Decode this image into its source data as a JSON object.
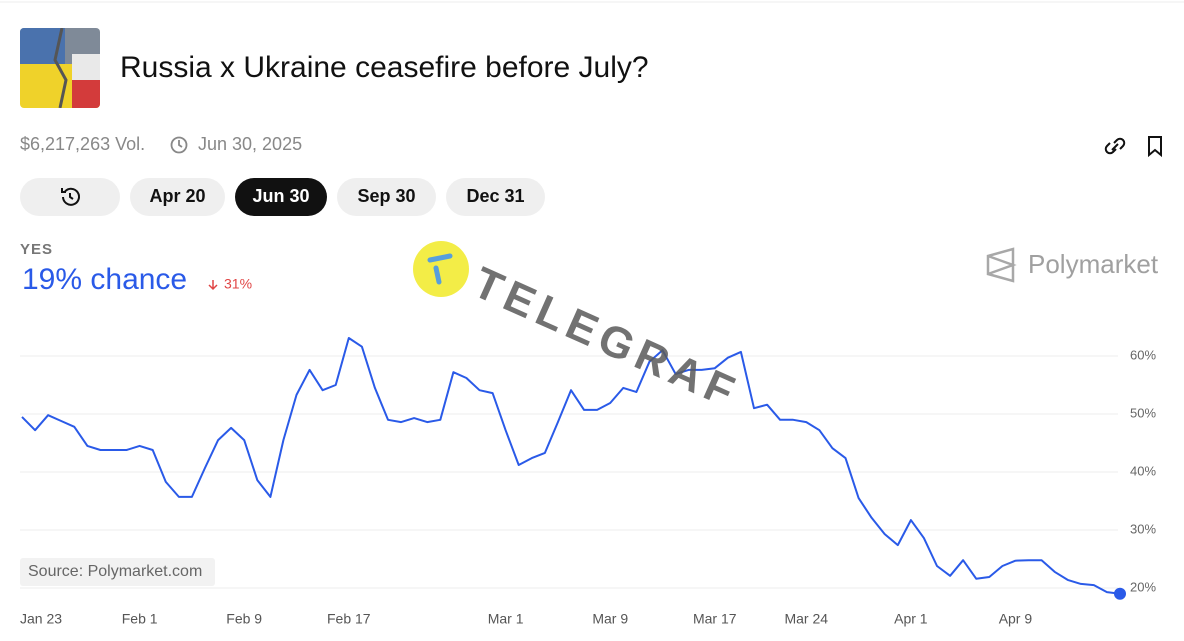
{
  "header": {
    "title": "Russia x Ukraine ceasefire before July?",
    "volume": "$6,217,263 Vol.",
    "end_date": "Jun 30, 2025"
  },
  "tabs": [
    "Apr 20",
    "Jun 30",
    "Sep 30",
    "Dec 31"
  ],
  "outcome": {
    "label": "YES",
    "chance": "19% chance",
    "change": "31%"
  },
  "brand": "Polymarket",
  "watermark": "TELEGRAF",
  "source": "Source: Polymarket.com",
  "chart_data": {
    "type": "line",
    "categories": [
      "Jan 23",
      null,
      null,
      null,
      null,
      null,
      null,
      null,
      null,
      "Feb 1",
      null,
      null,
      null,
      null,
      null,
      null,
      null,
      "Feb 9",
      null,
      null,
      null,
      null,
      null,
      null,
      null,
      "Feb 17",
      null,
      null,
      null,
      null,
      null,
      null,
      null,
      null,
      null,
      null,
      null,
      "Mar 1",
      null,
      null,
      null,
      null,
      null,
      null,
      null,
      "Mar 9",
      null,
      null,
      null,
      null,
      null,
      null,
      null,
      "Mar 17",
      null,
      null,
      null,
      null,
      null,
      null,
      "Mar 24",
      null,
      null,
      null,
      null,
      null,
      null,
      null,
      "Apr 1",
      null,
      null,
      null,
      null,
      null,
      null,
      null,
      "Apr 9",
      null,
      null,
      null,
      null,
      null,
      null,
      null,
      null
    ],
    "values": [
      49.5,
      47.2,
      49.8,
      48.8,
      47.8,
      44.5,
      43.8,
      43.8,
      43.8,
      44.5,
      43.8,
      38.3,
      35.7,
      35.7,
      40.7,
      45.5,
      47.6,
      45.5,
      38.6,
      35.7,
      45.5,
      53.3,
      57.6,
      54.1,
      55.0,
      63.1,
      61.6,
      54.5,
      49.0,
      48.6,
      49.3,
      48.6,
      49.0,
      57.2,
      56.2,
      54.1,
      53.6,
      47.2,
      41.2,
      42.4,
      43.3,
      48.6,
      54.1,
      50.7,
      50.7,
      51.9,
      54.5,
      53.8,
      59.0,
      61.0,
      56.9,
      57.6,
      57.6,
      57.9,
      59.7,
      60.7,
      51.0,
      51.6,
      49.0,
      49.0,
      48.6,
      47.2,
      44.1,
      42.4,
      35.5,
      32.1,
      29.3,
      27.4,
      31.7,
      28.6,
      23.8,
      22.1,
      24.8,
      21.6,
      21.9,
      23.8,
      24.7,
      24.8,
      24.8,
      22.8,
      21.4,
      20.7,
      20.5,
      19.3,
      19
    ],
    "color": "#2a5ae8",
    "ylim": [
      18,
      66
    ],
    "yticks": [
      {
        "value": 20,
        "label": "20%"
      },
      {
        "value": 30,
        "label": "30%"
      },
      {
        "value": 40,
        "label": "40%"
      },
      {
        "value": 50,
        "label": "50%"
      },
      {
        "value": 60,
        "label": "60%"
      }
    ],
    "grid": true
  }
}
